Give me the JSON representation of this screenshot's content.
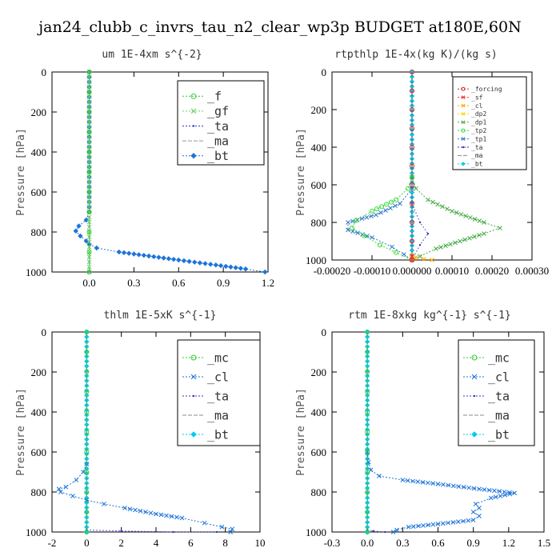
{
  "title": "jan24_clubb_c_invrs_tau_n2_clear_wp3p  BUDGET at180E,60N",
  "chart_data": [
    {
      "type": "line",
      "title": "um  1E-4xm s^{-2}",
      "ylabel": "Pressure [hPa]",
      "xlim": [
        -0.25,
        1.2
      ],
      "ylim": [
        1000,
        0
      ],
      "xticks": [
        "0.0",
        "0.3",
        "0.6",
        "0.9",
        "1.2"
      ],
      "xtick_values": [
        0,
        0.3,
        0.6,
        0.9,
        1.2
      ],
      "yticks": [
        "0",
        "200",
        "400",
        "600",
        "800",
        "1000"
      ],
      "legend": "upper-right",
      "legend_size": "large",
      "series": [
        {
          "name": "_f",
          "color": "#33cc33",
          "style": "circle",
          "points": [
            [
              0,
              0
            ],
            [
              0,
              100
            ],
            [
              0,
              200
            ],
            [
              0,
              300
            ],
            [
              0,
              400
            ],
            [
              0,
              500
            ],
            [
              0,
              600
            ],
            [
              0,
              700
            ],
            [
              0,
              800
            ],
            [
              0,
              900
            ],
            [
              0,
              1000
            ]
          ]
        },
        {
          "name": "_gf",
          "color": "#66cc66",
          "style": "x",
          "points": [
            [
              0,
              0
            ],
            [
              0,
              250
            ],
            [
              0,
              500
            ],
            [
              0,
              750
            ],
            [
              0,
              1000
            ]
          ]
        },
        {
          "name": "_ta",
          "color": "#3333cc",
          "style": "dot",
          "points": [
            [
              0,
              0
            ],
            [
              0,
              1000
            ]
          ]
        },
        {
          "name": "_ma",
          "color": "#999999",
          "style": "dash",
          "points": [
            [
              0,
              0
            ],
            [
              0,
              1000
            ]
          ]
        },
        {
          "name": "_bt",
          "color": "#1e74d8",
          "style": "diamond",
          "points": [
            [
              0,
              0
            ],
            [
              0,
              500
            ],
            [
              0,
              700
            ],
            [
              -0.02,
              740
            ],
            [
              -0.07,
              770
            ],
            [
              -0.09,
              795
            ],
            [
              -0.06,
              820
            ],
            [
              -0.02,
              845
            ],
            [
              0,
              860
            ],
            [
              0.05,
              880
            ],
            [
              0.2,
              900
            ],
            [
              0.4,
              920
            ],
            [
              0.6,
              940
            ],
            [
              0.85,
              965
            ],
            [
              1.05,
              985
            ],
            [
              1.18,
              1000
            ]
          ]
        }
      ]
    },
    {
      "type": "line",
      "title": "rtpthlp  1E-4x(kg K)/(kg s)",
      "ylabel": "Pressure [hPa]",
      "xlim": [
        -0.0002,
        0.0003
      ],
      "ylim": [
        1000,
        0
      ],
      "xticks": [
        "-0.00020",
        "-0.00010",
        "0.000000",
        "0.00010",
        "0.00020",
        "0.00030"
      ],
      "xtick_values": [
        -0.0002,
        -0.0001,
        0,
        0.0001,
        0.0002,
        0.0003
      ],
      "yticks": [
        "0",
        "200",
        "400",
        "600",
        "800",
        "1000"
      ],
      "legend": "upper-right",
      "legend_size": "small",
      "series": [
        {
          "name": "_forcing",
          "color": "#dd2222",
          "style": "circle",
          "points": [
            [
              0,
              0
            ],
            [
              0,
              100
            ],
            [
              0,
              200
            ],
            [
              0,
              300
            ],
            [
              0,
              400
            ],
            [
              0,
              500
            ],
            [
              0,
              600
            ],
            [
              0,
              700
            ],
            [
              0,
              800
            ],
            [
              0,
              900
            ],
            [
              0,
              1000
            ]
          ]
        },
        {
          "name": "_sf",
          "color": "#ee3333",
          "style": "x",
          "points": [
            [
              0,
              980
            ],
            [
              0,
              1000
            ]
          ]
        },
        {
          "name": "_cl",
          "color": "#ffaa00",
          "style": "x",
          "points": [
            [
              0,
              975
            ],
            [
              1e-05,
              985
            ],
            [
              3e-05,
              995
            ],
            [
              5e-05,
              1000
            ]
          ]
        },
        {
          "name": "_dp2",
          "color": "#ffd700",
          "style": "x",
          "points": [
            [
              0,
              990
            ],
            [
              0,
              1000
            ]
          ]
        },
        {
          "name": "_dp1",
          "color": "#44aa44",
          "style": "x",
          "points": [
            [
              0,
              560
            ],
            [
              1e-05,
              620
            ],
            [
              4e-05,
              680
            ],
            [
              0.0001,
              740
            ],
            [
              0.00018,
              800
            ],
            [
              0.00022,
              830
            ],
            [
              0.00018,
              860
            ],
            [
              0.00012,
              900
            ],
            [
              6e-05,
              940
            ],
            [
              2e-05,
              980
            ],
            [
              0,
              1000
            ]
          ]
        },
        {
          "name": "_tp2",
          "color": "#33dd33",
          "style": "circle",
          "points": [
            [
              0,
              560
            ],
            [
              -1e-05,
              620
            ],
            [
              -4e-05,
              680
            ],
            [
              -0.0001,
              740
            ],
            [
              -0.00014,
              790
            ],
            [
              -0.00015,
              830
            ],
            [
              -0.00012,
              870
            ],
            [
              -8e-05,
              920
            ],
            [
              -4e-05,
              960
            ],
            [
              0,
              1000
            ]
          ]
        },
        {
          "name": "_tp1",
          "color": "#3377cc",
          "style": "x",
          "points": [
            [
              0,
              620
            ],
            [
              -3e-05,
              700
            ],
            [
              -9e-05,
              760
            ],
            [
              -0.00016,
              800
            ],
            [
              -0.00016,
              840
            ],
            [
              -0.0001,
              880
            ],
            [
              -5e-05,
              930
            ],
            [
              -2e-05,
              970
            ],
            [
              0,
              1000
            ]
          ]
        },
        {
          "name": "_ta",
          "color": "#3333cc",
          "style": "dot",
          "points": [
            [
              0,
              700
            ],
            [
              2e-05,
              800
            ],
            [
              4e-05,
              860
            ],
            [
              2e-05,
              920
            ],
            [
              0,
              1000
            ]
          ]
        },
        {
          "name": "_ma",
          "color": "#888888",
          "style": "dash",
          "points": [
            [
              0,
              0
            ],
            [
              0,
              1000
            ]
          ]
        },
        {
          "name": "_bt",
          "color": "#00ccee",
          "style": "diamond",
          "points": [
            [
              0,
              0
            ],
            [
              0,
              1000
            ]
          ]
        }
      ]
    },
    {
      "type": "line",
      "title": "thlm  1E-5xK s^{-1}",
      "ylabel": "Pressure [hPa]",
      "xlim": [
        -2,
        10
      ],
      "ylim": [
        1000,
        0
      ],
      "xticks": [
        "-2",
        "0",
        "2",
        "4",
        "6",
        "8",
        "10"
      ],
      "xtick_values": [
        -2,
        0,
        2,
        4,
        6,
        8,
        10
      ],
      "yticks": [
        "0",
        "200",
        "400",
        "600",
        "800",
        "1000"
      ],
      "legend": "upper-right",
      "legend_size": "large",
      "series": [
        {
          "name": "_mc",
          "color": "#33cc33",
          "style": "circle",
          "points": [
            [
              0,
              0
            ],
            [
              0,
              100
            ],
            [
              0,
              200
            ],
            [
              0,
              300
            ],
            [
              0,
              400
            ],
            [
              0,
              500
            ],
            [
              0,
              600
            ],
            [
              0,
              700
            ],
            [
              0,
              800
            ],
            [
              0,
              900
            ],
            [
              0,
              1000
            ]
          ]
        },
        {
          "name": "_cl",
          "color": "#1e74d8",
          "style": "x",
          "points": [
            [
              0,
              660
            ],
            [
              -0.2,
              700
            ],
            [
              -0.6,
              740
            ],
            [
              -1.2,
              775
            ],
            [
              -1.6,
              785
            ],
            [
              -1.5,
              800
            ],
            [
              -0.8,
              820
            ],
            [
              0,
              840
            ],
            [
              1,
              860
            ],
            [
              2.2,
              880
            ],
            [
              4,
              910
            ],
            [
              5.5,
              930
            ],
            [
              6.8,
              955
            ],
            [
              7.8,
              975
            ],
            [
              8.4,
              985
            ],
            [
              8.3,
              1000
            ]
          ]
        },
        {
          "name": "_ta",
          "color": "#3333cc",
          "style": "dot",
          "points": [
            [
              0,
              990
            ],
            [
              2,
              995
            ],
            [
              5,
              1000
            ],
            [
              7.5,
              1000
            ]
          ]
        },
        {
          "name": "_ma",
          "color": "#888888",
          "style": "dash",
          "points": [
            [
              0,
              0
            ],
            [
              0,
              1000
            ]
          ]
        },
        {
          "name": "_bt",
          "color": "#00ccee",
          "style": "diamond",
          "points": [
            [
              0,
              0
            ],
            [
              0,
              1000
            ]
          ]
        }
      ]
    },
    {
      "type": "line",
      "title": "rtm  1E-8xkg kg^{-1} s^{-1}",
      "ylabel": "Pressure [hPa]",
      "xlim": [
        -0.3,
        1.5
      ],
      "ylim": [
        1000,
        0
      ],
      "xticks": [
        "-0.3",
        "0.0",
        "0.3",
        "0.6",
        "0.9",
        "1.2",
        "1.5"
      ],
      "xtick_values": [
        -0.3,
        0,
        0.3,
        0.6,
        0.9,
        1.2,
        1.5
      ],
      "yticks": [
        "0",
        "200",
        "400",
        "600",
        "800",
        "1000"
      ],
      "legend": "upper-right",
      "legend_size": "large",
      "series": [
        {
          "name": "_mc",
          "color": "#33cc33",
          "style": "circle",
          "points": [
            [
              0,
              0
            ],
            [
              0,
              100
            ],
            [
              0,
              200
            ],
            [
              0,
              300
            ],
            [
              0,
              400
            ],
            [
              0,
              500
            ],
            [
              0,
              600
            ],
            [
              0,
              700
            ],
            [
              0,
              800
            ],
            [
              0,
              900
            ],
            [
              0,
              1000
            ]
          ]
        },
        {
          "name": "_cl",
          "color": "#1e74d8",
          "style": "x",
          "points": [
            [
              0,
              600
            ],
            [
              0.01,
              650
            ],
            [
              0.03,
              690
            ],
            [
              0.1,
              720
            ],
            [
              0.3,
              740
            ],
            [
              0.6,
              760
            ],
            [
              0.95,
              785
            ],
            [
              1.25,
              805
            ],
            [
              1.05,
              830
            ],
            [
              0.92,
              860
            ],
            [
              0.95,
              880
            ],
            [
              0.9,
              900
            ],
            [
              0.95,
              920
            ],
            [
              0.9,
              940
            ],
            [
              0.6,
              960
            ],
            [
              0.35,
              975
            ],
            [
              0.25,
              990
            ],
            [
              0.22,
              1000
            ]
          ]
        },
        {
          "name": "_ta",
          "color": "#3333cc",
          "style": "dot",
          "points": [
            [
              0,
              990
            ],
            [
              0.05,
              995
            ],
            [
              0.15,
              1000
            ]
          ]
        },
        {
          "name": "_ma",
          "color": "#888888",
          "style": "dash",
          "points": [
            [
              0,
              0
            ],
            [
              0,
              1000
            ]
          ]
        },
        {
          "name": "_bt",
          "color": "#00ccee",
          "style": "diamond",
          "points": [
            [
              0,
              0
            ],
            [
              0,
              1000
            ]
          ]
        }
      ]
    }
  ]
}
